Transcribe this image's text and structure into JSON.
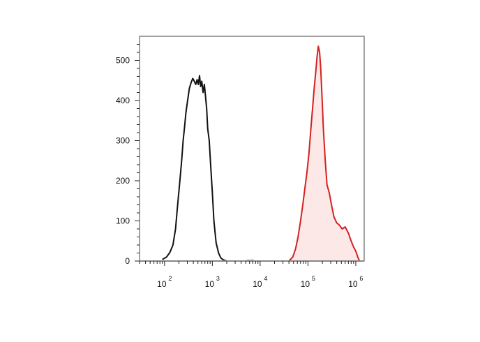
{
  "chart_data": {
    "type": "histogram",
    "x_scale": "log",
    "x_ticks": [
      {
        "value": 100,
        "base": "10",
        "exp": "2"
      },
      {
        "value": 1000,
        "base": "10",
        "exp": "3"
      },
      {
        "value": 10000,
        "base": "10",
        "exp": "4"
      },
      {
        "value": 100000,
        "base": "10",
        "exp": "5"
      },
      {
        "value": 1000000,
        "base": "10",
        "exp": "6"
      }
    ],
    "y_ticks": [
      "0",
      "100",
      "200",
      "300",
      "400",
      "500"
    ],
    "xlim": [
      30,
      1500000
    ],
    "ylim": [
      0,
      560
    ],
    "grid": false,
    "series": [
      {
        "color": "#111111",
        "fill": "none",
        "x": [
          90,
          110,
          130,
          150,
          170,
          185,
          200,
          215,
          230,
          245,
          260,
          280,
          300,
          330,
          360,
          390,
          420,
          450,
          480,
          510,
          540,
          570,
          600,
          640,
          680,
          720,
          760,
          800,
          860,
          920,
          1000,
          1080,
          1200,
          1350,
          1500,
          1700,
          2000
        ],
        "y": [
          4,
          10,
          22,
          40,
          80,
          130,
          175,
          215,
          255,
          300,
          330,
          370,
          395,
          430,
          445,
          455,
          448,
          440,
          452,
          440,
          462,
          435,
          448,
          420,
          440,
          410,
          380,
          330,
          300,
          240,
          170,
          100,
          45,
          20,
          8,
          3,
          0
        ]
      },
      {
        "color": "#d42020",
        "fill": "#fde8e8",
        "x": [
          40000,
          48000,
          55000,
          62000,
          70000,
          78000,
          86000,
          95000,
          105000,
          115000,
          125000,
          135000,
          145000,
          155000,
          165000,
          175000,
          185000,
          195000,
          210000,
          230000,
          250000,
          280000,
          310000,
          350000,
          400000,
          450000,
          520000,
          600000,
          700000,
          800000,
          900000,
          1000000,
          1100000,
          1200000
        ],
        "y": [
          0,
          10,
          30,
          60,
          100,
          140,
          180,
          220,
          270,
          330,
          380,
          430,
          470,
          510,
          535,
          520,
          480,
          420,
          330,
          250,
          190,
          170,
          140,
          110,
          95,
          90,
          80,
          85,
          70,
          50,
          35,
          25,
          10,
          0
        ]
      }
    ],
    "minor_trace": {
      "color": "#9a9a9a",
      "x": [
        5000,
        5600,
        6200,
        6800,
        7400
      ],
      "y": [
        1,
        3,
        2,
        4,
        1
      ]
    }
  }
}
